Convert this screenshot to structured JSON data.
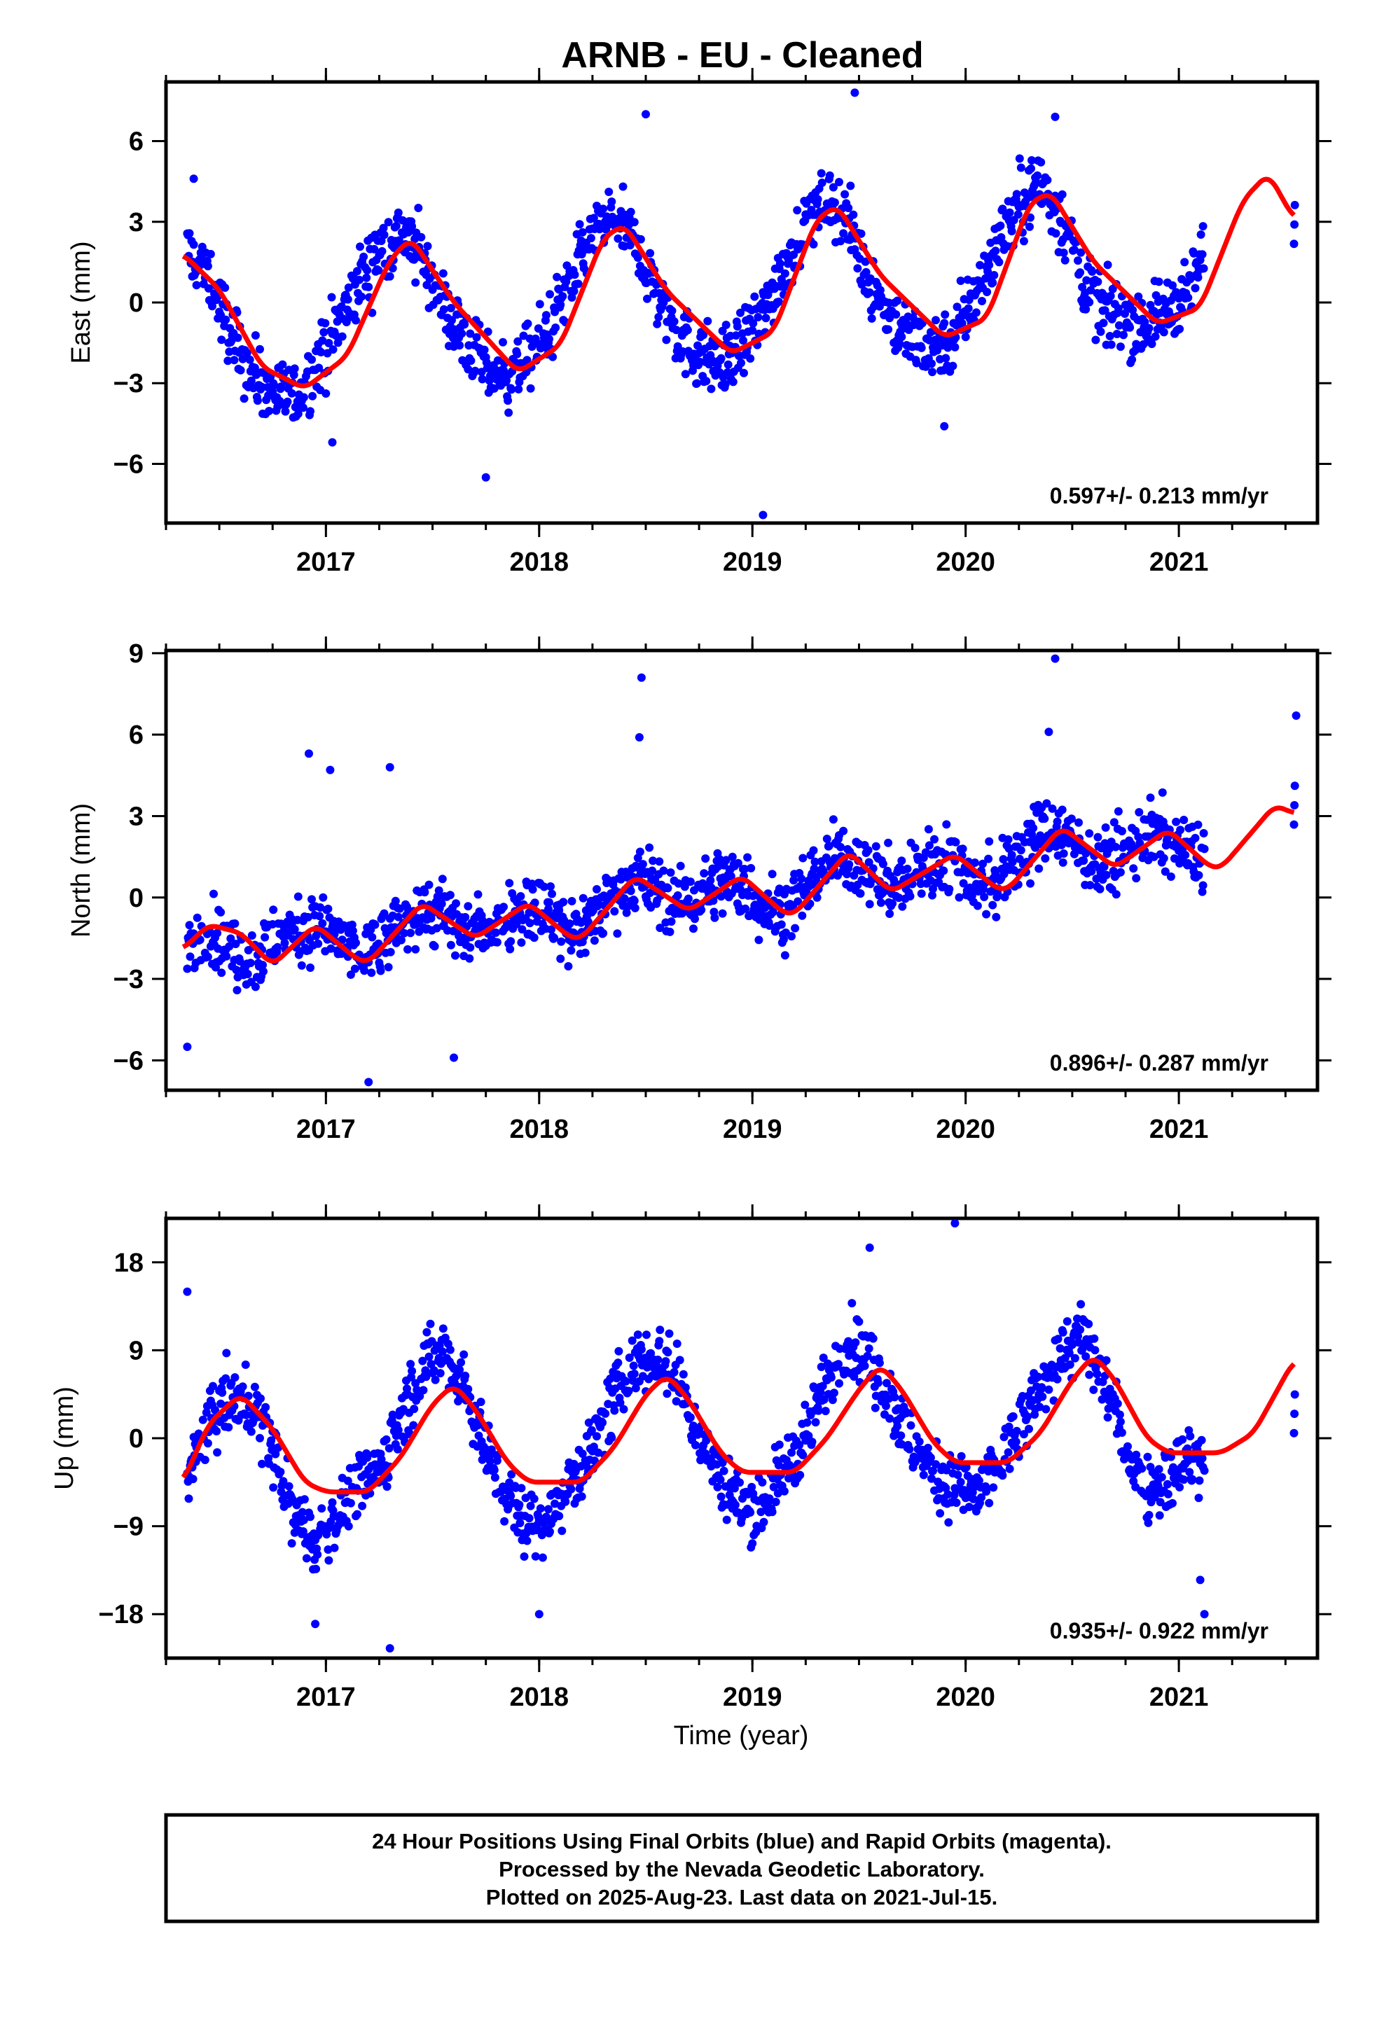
{
  "title": "ARNB  - EU - Cleaned",
  "xlabel": "Time (year)",
  "footer": {
    "line1": "24 Hour Positions Using Final Orbits (blue) and Rapid Orbits (magenta).",
    "line2": "Processed by the Nevada Geodetic Laboratory.",
    "line3": "Plotted on 2025-Aug-23. Last data on 2021-Jul-15."
  },
  "colors": {
    "data": "#0000ff",
    "model": "#ff0000",
    "axis": "#000000"
  },
  "chart_data": [
    {
      "type": "scatter",
      "ylabel": "East (mm)",
      "rate_label": "0.597+/- 0.213 mm/yr",
      "xlim": [
        2016.25,
        2021.65
      ],
      "ylim": [
        -8.2,
        8.2
      ],
      "yticks": [
        -6,
        -3,
        0,
        3,
        6
      ],
      "ytick_labels": [
        "−6",
        "−3",
        "0",
        "3",
        "6"
      ],
      "xticks": [
        2017,
        2018,
        2019,
        2020,
        2021
      ],
      "xtick_labels": [
        "2017",
        "2018",
        "2019",
        "2020",
        "2021"
      ],
      "series": [
        {
          "kind": "points",
          "x": [
            2016.35,
            2016.45,
            2016.55,
            2016.65,
            2016.75,
            2016.85,
            2016.95,
            2017.05,
            2017.15,
            2017.25,
            2017.35,
            2017.45,
            2017.55,
            2017.65,
            2017.75,
            2017.85,
            2017.95,
            2018.05,
            2018.15,
            2018.25,
            2018.35,
            2018.45,
            2018.55,
            2018.65,
            2018.75,
            2018.85,
            2018.95,
            2019.05,
            2019.15,
            2019.25,
            2019.35,
            2019.45,
            2019.55,
            2019.65,
            2019.75,
            2019.85,
            2019.95,
            2020.05,
            2020.15,
            2020.25,
            2020.35,
            2020.45,
            2020.55,
            2020.65,
            2020.75,
            2020.85,
            2020.95,
            2021.05,
            2021.12,
            2021.54
          ],
          "y": [
            1.9,
            0.9,
            -1.1,
            -2.6,
            -3.3,
            -3.6,
            -2.5,
            -1.0,
            0.6,
            1.9,
            2.6,
            1.7,
            -0.1,
            -1.4,
            -2.5,
            -2.7,
            -2.1,
            -0.9,
            0.8,
            2.4,
            3.2,
            2.2,
            0.4,
            -1.2,
            -2.0,
            -2.2,
            -1.6,
            -0.4,
            1.4,
            3.0,
            3.9,
            2.9,
            0.8,
            -0.6,
            -1.4,
            -1.6,
            -1.2,
            0.3,
            2.2,
            3.7,
            4.4,
            3.2,
            0.9,
            -0.4,
            -0.6,
            -0.8,
            -0.3,
            0.6,
            1.8,
            2.9
          ],
          "outliers_x": [
            2016.38,
            2017.03,
            2017.75,
            2018.5,
            2019.05,
            2019.48,
            2020.42,
            2019.9
          ],
          "outliers_y": [
            4.6,
            -5.2,
            -6.5,
            7.0,
            -7.9,
            7.8,
            6.9,
            -4.6
          ]
        },
        {
          "kind": "line",
          "x": [
            2016.33,
            2016.5,
            2016.7,
            2016.9,
            2017.1,
            2017.3,
            2017.4,
            2017.6,
            2017.9,
            2018.1,
            2018.3,
            2018.4,
            2018.6,
            2018.9,
            2019.1,
            2019.3,
            2019.4,
            2019.6,
            2019.9,
            2020.1,
            2020.3,
            2020.4,
            2020.6,
            2020.9,
            2021.1,
            2021.3,
            2021.42,
            2021.54
          ],
          "y": [
            1.8,
            0.5,
            -2.4,
            -3.2,
            -2.0,
            1.6,
            2.4,
            0.0,
            -2.6,
            -1.6,
            2.4,
            2.9,
            0.4,
            -1.9,
            -1.1,
            3.1,
            3.6,
            1.0,
            -1.3,
            -0.6,
            3.7,
            4.1,
            1.5,
            -0.8,
            -0.2,
            3.8,
            4.8,
            3.1
          ]
        }
      ]
    },
    {
      "type": "scatter",
      "ylabel": "North (mm)",
      "rate_label": "0.896+/- 0.287 mm/yr",
      "xlim": [
        2016.25,
        2021.65
      ],
      "ylim": [
        -7.1,
        9.1
      ],
      "yticks": [
        -6,
        -3,
        0,
        3,
        6,
        9
      ],
      "ytick_labels": [
        "−6",
        "−3",
        "0",
        "3",
        "6",
        "9"
      ],
      "xticks": [
        2017,
        2018,
        2019,
        2020,
        2021
      ],
      "xtick_labels": [
        "2017",
        "2018",
        "2019",
        "2020",
        "2021"
      ],
      "series": [
        {
          "kind": "points",
          "x": [
            2016.35,
            2016.45,
            2016.55,
            2016.65,
            2016.75,
            2016.85,
            2016.95,
            2017.05,
            2017.15,
            2017.25,
            2017.35,
            2017.45,
            2017.55,
            2017.65,
            2017.75,
            2017.85,
            2017.95,
            2018.05,
            2018.15,
            2018.25,
            2018.35,
            2018.45,
            2018.55,
            2018.65,
            2018.75,
            2018.85,
            2018.95,
            2019.05,
            2019.15,
            2019.25,
            2019.35,
            2019.45,
            2019.55,
            2019.65,
            2019.75,
            2019.85,
            2019.95,
            2020.05,
            2020.15,
            2020.25,
            2020.35,
            2020.45,
            2020.55,
            2020.65,
            2020.75,
            2020.85,
            2020.95,
            2021.05,
            2021.12,
            2021.54
          ],
          "y": [
            -1.6,
            -1.2,
            -1.9,
            -2.3,
            -1.7,
            -1.2,
            -1.1,
            -1.5,
            -2.2,
            -1.9,
            -1.0,
            -0.4,
            -0.7,
            -1.3,
            -1.2,
            -0.6,
            -0.3,
            -0.6,
            -1.4,
            -0.8,
            0.2,
            0.8,
            0.4,
            -0.3,
            0.0,
            0.6,
            0.4,
            -0.3,
            -0.5,
            0.4,
            1.3,
            1.5,
            0.9,
            0.4,
            0.8,
            1.4,
            1.3,
            0.6,
            0.6,
            1.5,
            2.4,
            2.5,
            1.7,
            1.2,
            1.6,
            2.3,
            2.2,
            1.6,
            1.4,
            3.4
          ],
          "outliers_x": [
            2016.35,
            2016.92,
            2017.02,
            2017.3,
            2017.2,
            2017.6,
            2018.48,
            2018.47,
            2020.42,
            2020.39,
            2021.55
          ],
          "outliers_y": [
            -5.5,
            5.3,
            4.7,
            4.8,
            -6.8,
            -5.9,
            8.1,
            5.9,
            8.8,
            6.1,
            6.7
          ]
        },
        {
          "kind": "line",
          "x": [
            2016.33,
            2016.45,
            2016.6,
            2016.75,
            2016.95,
            2017.15,
            2017.2,
            2017.45,
            2017.7,
            2017.95,
            2018.15,
            2018.2,
            2018.45,
            2018.7,
            2018.95,
            2019.15,
            2019.2,
            2019.45,
            2019.65,
            2019.95,
            2020.15,
            2020.2,
            2020.45,
            2020.7,
            2020.95,
            2021.15,
            2021.2,
            2021.45,
            2021.54
          ],
          "y": [
            -1.9,
            -1.0,
            -1.3,
            -2.5,
            -1.0,
            -2.3,
            -2.4,
            -0.2,
            -1.5,
            -0.2,
            -1.5,
            -1.5,
            0.8,
            -0.5,
            0.8,
            -0.6,
            -0.6,
            1.7,
            0.2,
            1.6,
            0.3,
            0.3,
            2.6,
            1.1,
            2.5,
            1.1,
            1.1,
            3.4,
            3.1
          ]
        }
      ]
    },
    {
      "type": "scatter",
      "ylabel": "Up (mm)",
      "rate_label": "0.935+/- 0.922 mm/yr",
      "xlim": [
        2016.25,
        2021.65
      ],
      "ylim": [
        -22.5,
        22.5
      ],
      "yticks": [
        -18,
        -9,
        0,
        9,
        18
      ],
      "ytick_labels": [
        "−18",
        "−9",
        "0",
        "9",
        "18"
      ],
      "xticks": [
        2017,
        2018,
        2019,
        2020,
        2021
      ],
      "xtick_labels": [
        "2017",
        "2018",
        "2019",
        "2020",
        "2021"
      ],
      "series": [
        {
          "kind": "points",
          "x": [
            2016.35,
            2016.45,
            2016.55,
            2016.65,
            2016.75,
            2016.85,
            2016.95,
            2017.05,
            2017.15,
            2017.25,
            2017.35,
            2017.45,
            2017.55,
            2017.65,
            2017.75,
            2017.85,
            2017.95,
            2018.05,
            2018.15,
            2018.25,
            2018.35,
            2018.45,
            2018.55,
            2018.65,
            2018.75,
            2018.85,
            2018.95,
            2019.05,
            2019.15,
            2019.25,
            2019.35,
            2019.45,
            2019.55,
            2019.65,
            2019.75,
            2019.85,
            2019.95,
            2020.05,
            2020.15,
            2020.25,
            2020.35,
            2020.45,
            2020.55,
            2020.65,
            2020.75,
            2020.85,
            2020.95,
            2021.05,
            2021.12,
            2021.54
          ],
          "y": [
            -4.0,
            1.5,
            4.0,
            3.5,
            -1.0,
            -8.0,
            -10.5,
            -8.0,
            -5.0,
            -3.0,
            2.0,
            7.0,
            9.0,
            5.5,
            -1.0,
            -6.0,
            -9.0,
            -8.0,
            -4.5,
            -1.0,
            4.0,
            8.0,
            8.5,
            6.0,
            0.0,
            -4.0,
            -7.0,
            -6.5,
            -3.5,
            0.5,
            6.0,
            10.0,
            8.0,
            4.0,
            -1.0,
            -3.5,
            -5.0,
            -6.0,
            -3.0,
            0.5,
            5.0,
            9.0,
            10.0,
            6.0,
            -1.0,
            -5.0,
            -4.0,
            -2.0,
            -3.0,
            2.5
          ],
          "outliers_x": [
            2016.35,
            2016.95,
            2017.3,
            2018.0,
            2019.55,
            2019.95,
            2021.12,
            2021.1
          ],
          "outliers_y": [
            15.0,
            -19.0,
            -21.5,
            -18.0,
            19.5,
            22.0,
            -18.0,
            -14.5
          ]
        },
        {
          "kind": "line",
          "x": [
            2016.33,
            2016.45,
            2016.6,
            2016.75,
            2016.9,
            2017.0,
            2017.2,
            2017.35,
            2017.5,
            2017.6,
            2017.7,
            2017.85,
            2017.95,
            2018.2,
            2018.35,
            2018.5,
            2018.6,
            2018.7,
            2018.85,
            2018.95,
            2019.2,
            2019.35,
            2019.5,
            2019.6,
            2019.7,
            2019.85,
            2019.95,
            2020.2,
            2020.35,
            2020.5,
            2020.6,
            2020.7,
            2020.85,
            2020.95,
            2021.2,
            2021.35,
            2021.54
          ],
          "y": [
            -4.5,
            1.5,
            4.5,
            1.0,
            -4.5,
            -5.5,
            -5.5,
            -2.0,
            3.5,
            5.5,
            3.0,
            -2.5,
            -4.5,
            -4.5,
            -1.0,
            4.5,
            6.5,
            4.0,
            -1.5,
            -3.5,
            -3.5,
            0.0,
            5.0,
            7.5,
            5.0,
            -0.5,
            -2.5,
            -2.5,
            0.5,
            6.0,
            8.5,
            6.0,
            0.0,
            -1.5,
            -1.5,
            0.5,
            8.0
          ]
        }
      ]
    }
  ]
}
